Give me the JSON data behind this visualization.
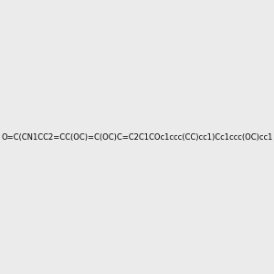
{
  "smiles": "O=C(CN1CC2=CC(OC)=C(OC)C=C2C1COc1ccc(CC)cc1)Cc1ccc(OC)cc1",
  "background_color": "#ebebeb",
  "bond_color": "#000000",
  "atom_colors": {
    "N": "#0000ff",
    "O": "#ff0000",
    "C": "#000000"
  },
  "figsize": [
    3.0,
    3.0
  ],
  "dpi": 100
}
